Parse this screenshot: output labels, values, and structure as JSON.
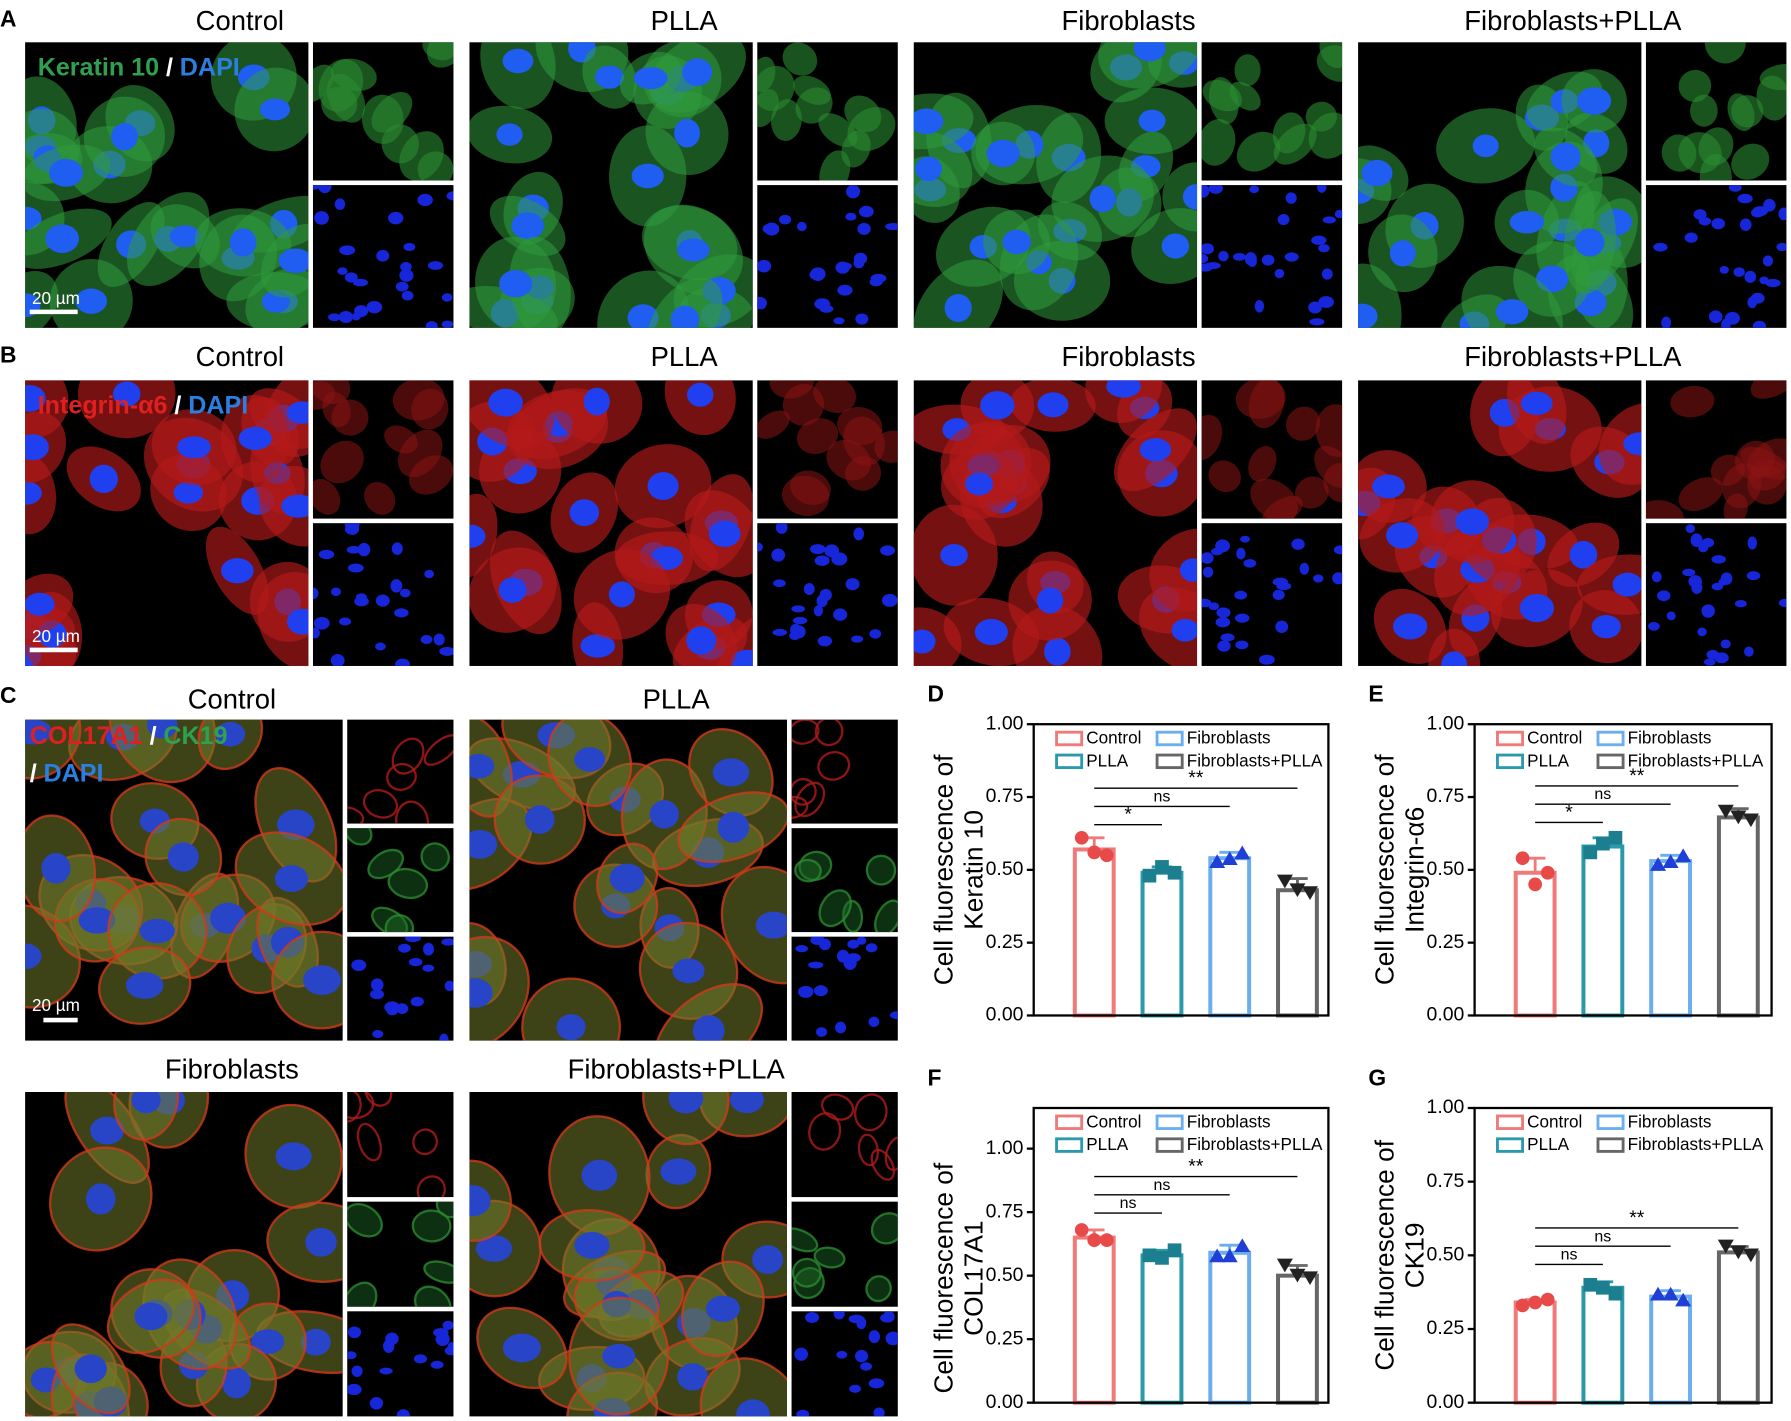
{
  "figure": {
    "panel_A": {
      "letter": "A",
      "titles": [
        "Control",
        "PLLA",
        "Fibroblasts",
        "Fibroblasts+PLLA"
      ],
      "stain": [
        "Keratin 10",
        "/",
        "DAPI"
      ],
      "scale_bar": "20 µm"
    },
    "panel_B": {
      "letter": "B",
      "titles": [
        "Control",
        "PLLA",
        "Fibroblasts",
        "Fibroblasts+PLLA"
      ],
      "stain": [
        "Integrin-α6",
        "/",
        "DAPI"
      ],
      "scale_bar": "20 µm"
    },
    "panel_C": {
      "letter": "C",
      "titles": [
        "Control",
        "PLLA",
        "Fibroblasts",
        "Fibroblasts+PLLA"
      ],
      "stain": [
        "COL17A1",
        "/",
        "CK19",
        "/",
        "DAPI"
      ],
      "scale_bar": "20 µm"
    }
  },
  "chart_data": [
    {
      "type": "bar",
      "panel": "D",
      "ylabel": [
        "Cell fluorescence of",
        "Keratin 10"
      ],
      "categories": [
        "Control",
        "PLLA",
        "Fibroblasts",
        "Fibroblasts+PLLA"
      ],
      "values": [
        0.57,
        0.49,
        0.54,
        0.43
      ],
      "errors": [
        0.04,
        0.02,
        0.02,
        0.04
      ],
      "points": [
        [
          0.61,
          0.55,
          0.56
        ],
        [
          0.48,
          0.49,
          0.51
        ],
        [
          0.53,
          0.56,
          0.54
        ],
        [
          0.46,
          0.42,
          0.43
        ]
      ],
      "colors": [
        "#f07a7a",
        "#2a9aaa",
        "#6aaef0",
        "#666666"
      ],
      "point_colors": [
        "#e84a4a",
        "#1c7f8f",
        "#1f3fd6",
        "#222222"
      ],
      "markers": [
        "circle",
        "square",
        "triangle",
        "triangle-down"
      ],
      "ylim": [
        0,
        1.0
      ],
      "yticks": [
        {
          "value": 0,
          "label": "0.00"
        },
        {
          "value": 0.25,
          "label": "0.25"
        },
        {
          "value": 0.5,
          "label": "0.50"
        },
        {
          "value": 0.75,
          "label": "0.75"
        },
        {
          "value": 1,
          "label": "1.00"
        }
      ],
      "annotations": [
        {
          "between": [
            "Control",
            "PLLA"
          ],
          "label": "*"
        },
        {
          "between": [
            "Control",
            "Fibroblasts"
          ],
          "label": "ns"
        },
        {
          "between": [
            "Control",
            "Fibroblasts+PLLA"
          ],
          "label": "**"
        }
      ]
    },
    {
      "type": "bar",
      "panel": "E",
      "ylabel": [
        "Cell fluorescence of",
        "Integrin-α6"
      ],
      "categories": [
        "Control",
        "PLLA",
        "Fibroblasts",
        "Fibroblasts+PLLA"
      ],
      "values": [
        0.49,
        0.58,
        0.53,
        0.68
      ],
      "errors": [
        0.05,
        0.03,
        0.02,
        0.03
      ],
      "points": [
        [
          0.54,
          0.49,
          0.45
        ],
        [
          0.56,
          0.61,
          0.59
        ],
        [
          0.52,
          0.55,
          0.53
        ],
        [
          0.7,
          0.67,
          0.68
        ]
      ],
      "colors": [
        "#f07a7a",
        "#2a9aaa",
        "#6aaef0",
        "#666666"
      ],
      "point_colors": [
        "#e84a4a",
        "#1c7f8f",
        "#1f3fd6",
        "#222222"
      ],
      "markers": [
        "circle",
        "square",
        "triangle",
        "triangle-down"
      ],
      "ylim": [
        0,
        1.0
      ],
      "yticks": [
        {
          "value": 0,
          "label": "0.00"
        },
        {
          "value": 0.25,
          "label": "0.25"
        },
        {
          "value": 0.5,
          "label": "0.50"
        },
        {
          "value": 0.75,
          "label": "0.75"
        },
        {
          "value": 1,
          "label": "1.00"
        }
      ],
      "annotations": [
        {
          "between": [
            "Control",
            "PLLA"
          ],
          "label": "*"
        },
        {
          "between": [
            "Control",
            "Fibroblasts"
          ],
          "label": "ns"
        },
        {
          "between": [
            "Control",
            "Fibroblasts+PLLA"
          ],
          "label": "**"
        }
      ]
    },
    {
      "type": "bar",
      "panel": "F",
      "ylabel": [
        "Cell fluorescence of",
        "COL17A1"
      ],
      "categories": [
        "Control",
        "PLLA",
        "Fibroblasts",
        "Fibroblasts+PLLA"
      ],
      "values": [
        0.65,
        0.58,
        0.59,
        0.5
      ],
      "errors": [
        0.03,
        0.02,
        0.03,
        0.04
      ],
      "points": [
        [
          0.68,
          0.64,
          0.64
        ],
        [
          0.58,
          0.6,
          0.57
        ],
        [
          0.58,
          0.62,
          0.58
        ],
        [
          0.54,
          0.49,
          0.5
        ]
      ],
      "colors": [
        "#f07a7a",
        "#2a9aaa",
        "#6aaef0",
        "#666666"
      ],
      "point_colors": [
        "#e84a4a",
        "#1c7f8f",
        "#1f3fd6",
        "#222222"
      ],
      "markers": [
        "circle",
        "square",
        "triangle",
        "triangle-down"
      ],
      "ylim": [
        0,
        1.16
      ],
      "yticks": [
        {
          "value": 0,
          "label": "0.00"
        },
        {
          "value": 0.25,
          "label": "0.25"
        },
        {
          "value": 0.5,
          "label": "0.50"
        },
        {
          "value": 0.75,
          "label": "0.75"
        },
        {
          "value": 1,
          "label": "1.00"
        }
      ],
      "annotations": [
        {
          "between": [
            "Control",
            "PLLA"
          ],
          "label": "ns"
        },
        {
          "between": [
            "Control",
            "Fibroblasts"
          ],
          "label": "ns"
        },
        {
          "between": [
            "Control",
            "Fibroblasts+PLLA"
          ],
          "label": "**"
        }
      ]
    },
    {
      "type": "bar",
      "panel": "G",
      "ylabel": [
        "Cell fluorescence of",
        "CK19"
      ],
      "categories": [
        "Control",
        "PLLA",
        "Fibroblasts",
        "Fibroblasts+PLLA"
      ],
      "values": [
        0.34,
        0.39,
        0.36,
        0.51
      ],
      "errors": [
        0.01,
        0.02,
        0.02,
        0.02
      ],
      "points": [
        [
          0.33,
          0.35,
          0.34
        ],
        [
          0.4,
          0.37,
          0.39
        ],
        [
          0.37,
          0.35,
          0.37
        ],
        [
          0.53,
          0.5,
          0.51
        ]
      ],
      "colors": [
        "#f07a7a",
        "#2a9aaa",
        "#6aaef0",
        "#666666"
      ],
      "point_colors": [
        "#e84a4a",
        "#1c7f8f",
        "#1f3fd6",
        "#222222"
      ],
      "markers": [
        "circle",
        "square",
        "triangle",
        "triangle-down"
      ],
      "ylim": [
        0,
        1.0
      ],
      "yticks": [
        {
          "value": 0,
          "label": "0.00"
        },
        {
          "value": 0.25,
          "label": "0.25"
        },
        {
          "value": 0.5,
          "label": "0.50"
        },
        {
          "value": 0.75,
          "label": "0.75"
        },
        {
          "value": 1,
          "label": "1.00"
        }
      ],
      "annotations": [
        {
          "between": [
            "Control",
            "PLLA"
          ],
          "label": "ns"
        },
        {
          "between": [
            "Control",
            "Fibroblasts"
          ],
          "label": "ns"
        },
        {
          "between": [
            "Control",
            "Fibroblasts+PLLA"
          ],
          "label": "**"
        }
      ]
    }
  ]
}
